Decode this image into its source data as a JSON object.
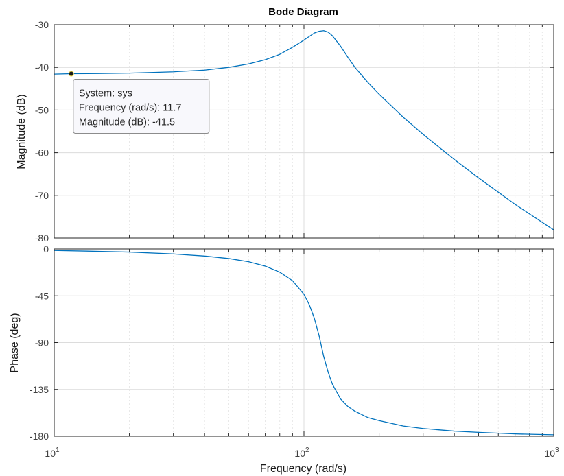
{
  "chart_data": {
    "type": "line",
    "title": "Bode Diagram",
    "xlabel": "Frequency  (rad/s)",
    "x_scale": "log",
    "xlim": [
      10,
      1000
    ],
    "x_ticks": [
      {
        "value": 10,
        "base": "10",
        "exp": "1"
      },
      {
        "value": 100,
        "base": "10",
        "exp": "2"
      },
      {
        "value": 1000,
        "base": "10",
        "exp": "3"
      }
    ],
    "grid": true,
    "subplots": [
      {
        "id": "magnitude",
        "ylabel": "Magnitude (dB)",
        "ylim": [
          -80,
          -30
        ],
        "yticks": [
          -30,
          -40,
          -50,
          -60,
          -70,
          -80
        ],
        "series": [
          {
            "color": "#0072BD",
            "x": [
              10,
              11.7,
              15,
              20,
              25,
              30,
              40,
              50,
              60,
              70,
              80,
              90,
              100,
              110,
              115,
              120,
              125,
              130,
              140,
              150,
              160,
              180,
              200,
              250,
              300,
              400,
              500,
              700,
              1000
            ],
            "y": [
              -41.6,
              -41.5,
              -41.45,
              -41.35,
              -41.2,
              -41.05,
              -40.65,
              -40.0,
              -39.2,
              -38.2,
              -36.95,
              -35.3,
              -33.6,
              -31.95,
              -31.55,
              -31.4,
              -31.75,
              -32.6,
              -35.0,
              -37.65,
              -40.0,
              -43.5,
              -46.3,
              -51.7,
              -55.7,
              -61.6,
              -65.9,
              -72.1,
              -78.1
            ]
          }
        ],
        "datatip": {
          "marker": {
            "x": 11.7,
            "y": -41.5
          },
          "lines": [
            "System: sys",
            "Frequency (rad/s): 11.7",
            "Magnitude (dB): -41.5"
          ]
        }
      },
      {
        "id": "phase",
        "ylabel": "Phase (deg)",
        "ylim": [
          -180,
          0
        ],
        "yticks": [
          0,
          -45,
          -90,
          -135,
          -180
        ],
        "series": [
          {
            "color": "#0072BD",
            "x": [
              10,
              15,
              20,
              30,
              40,
              50,
              60,
              70,
              80,
              90,
              100,
              105,
              110,
              115,
              120,
              125,
              130,
              140,
              150,
              160,
              180,
              200,
              250,
              300,
              400,
              500,
              700,
              1000
            ],
            "y": [
              -1.5,
              -2.3,
              -3.0,
              -4.8,
              -6.8,
              -9.2,
              -12.3,
              -16.5,
              -22.3,
              -30.5,
              -43.6,
              -53.5,
              -66.5,
              -83.5,
              -103.5,
              -118.5,
              -130.0,
              -144.0,
              -151.5,
              -156.0,
              -162.0,
              -165.0,
              -170.2,
              -172.6,
              -175.1,
              -176.3,
              -177.8,
              -178.6
            ]
          }
        ]
      }
    ]
  }
}
